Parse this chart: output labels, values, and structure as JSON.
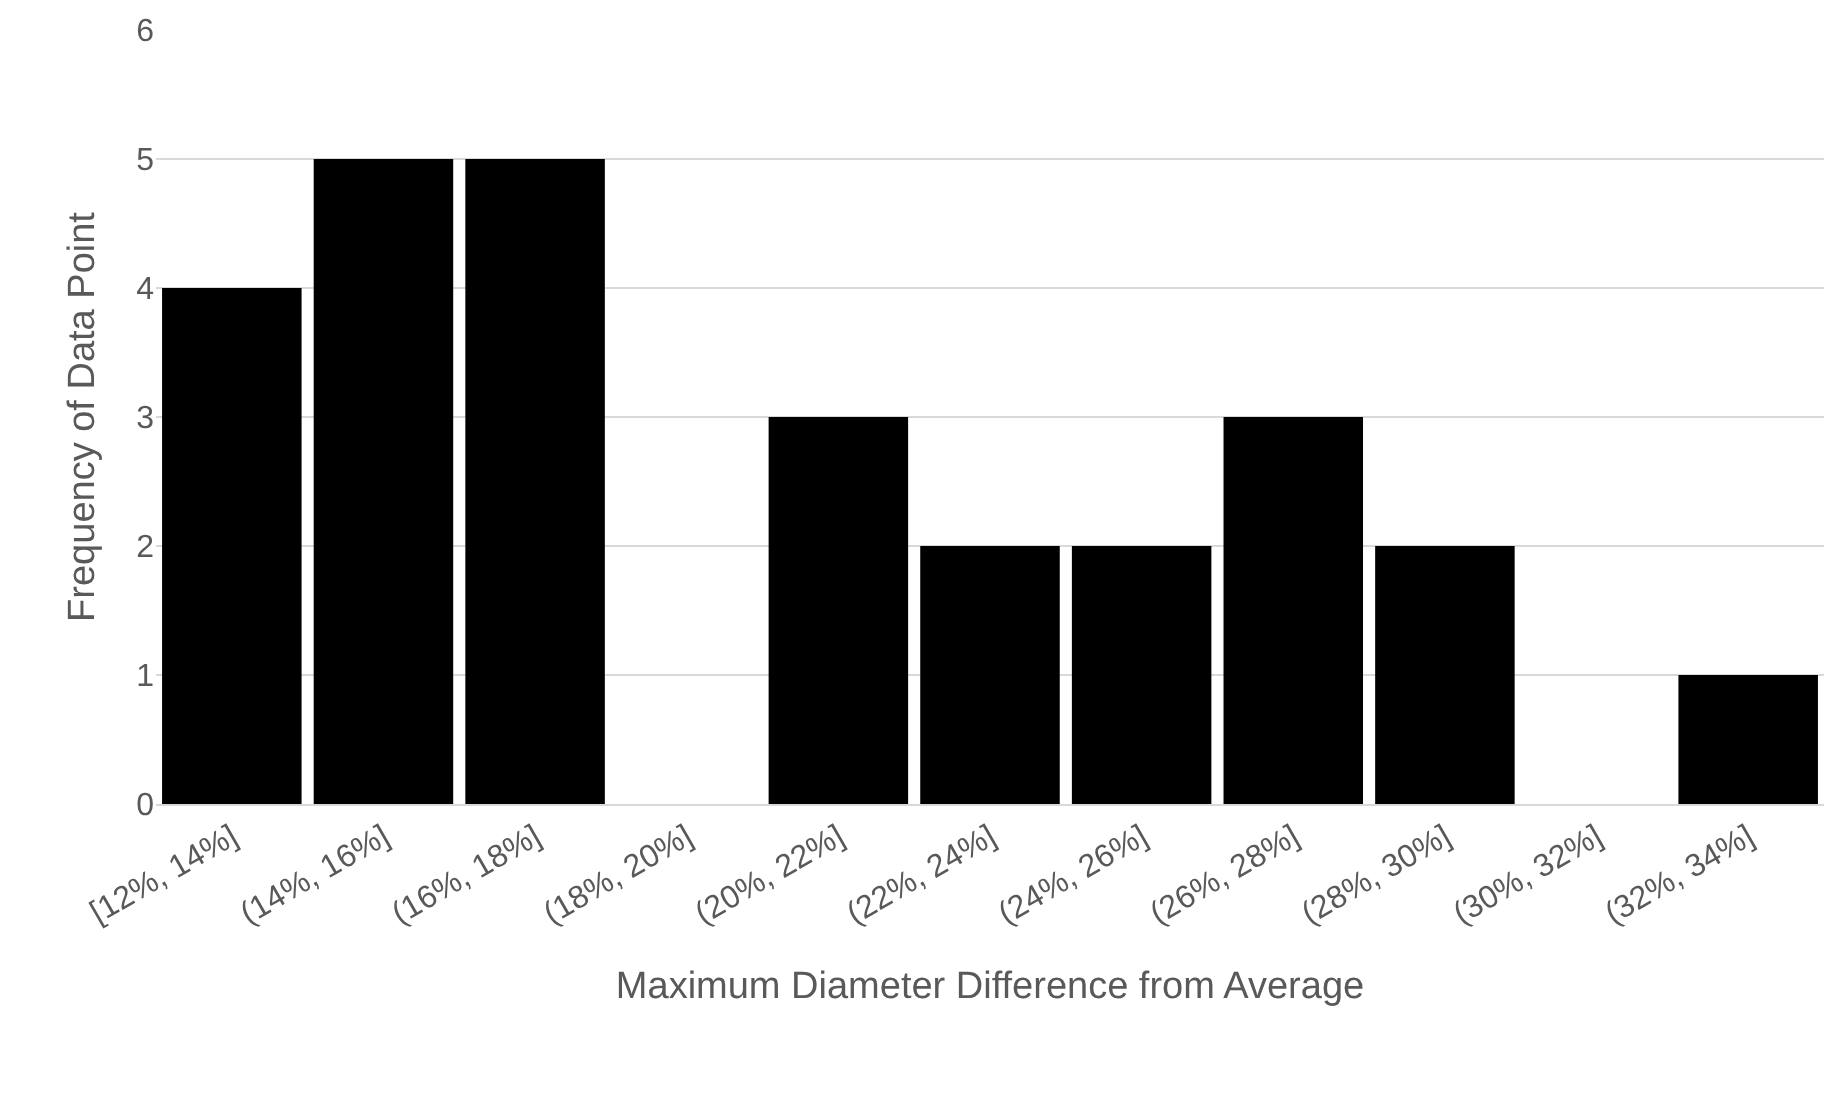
{
  "chart_data": {
    "type": "bar",
    "xlabel": "Maximum Diameter Difference from Average",
    "ylabel": "Frequency of Data Point",
    "categories": [
      "[12%, 14%]",
      "(14%, 16%]",
      "(16%, 18%]",
      "(18%, 20%]",
      "(20%, 22%]",
      "(22%, 24%]",
      "(24%, 26%]",
      "(26%, 28%]",
      "(28%, 30%]",
      "(30%, 32%]",
      "(32%, 34%]"
    ],
    "values": [
      4,
      5,
      5,
      0,
      3,
      2,
      2,
      3,
      2,
      0,
      1
    ],
    "color": "#000000",
    "ylim": [
      0,
      6
    ],
    "yticks": [
      0,
      1,
      2,
      3,
      4,
      5,
      6
    ],
    "grid": "y",
    "legend": false
  }
}
